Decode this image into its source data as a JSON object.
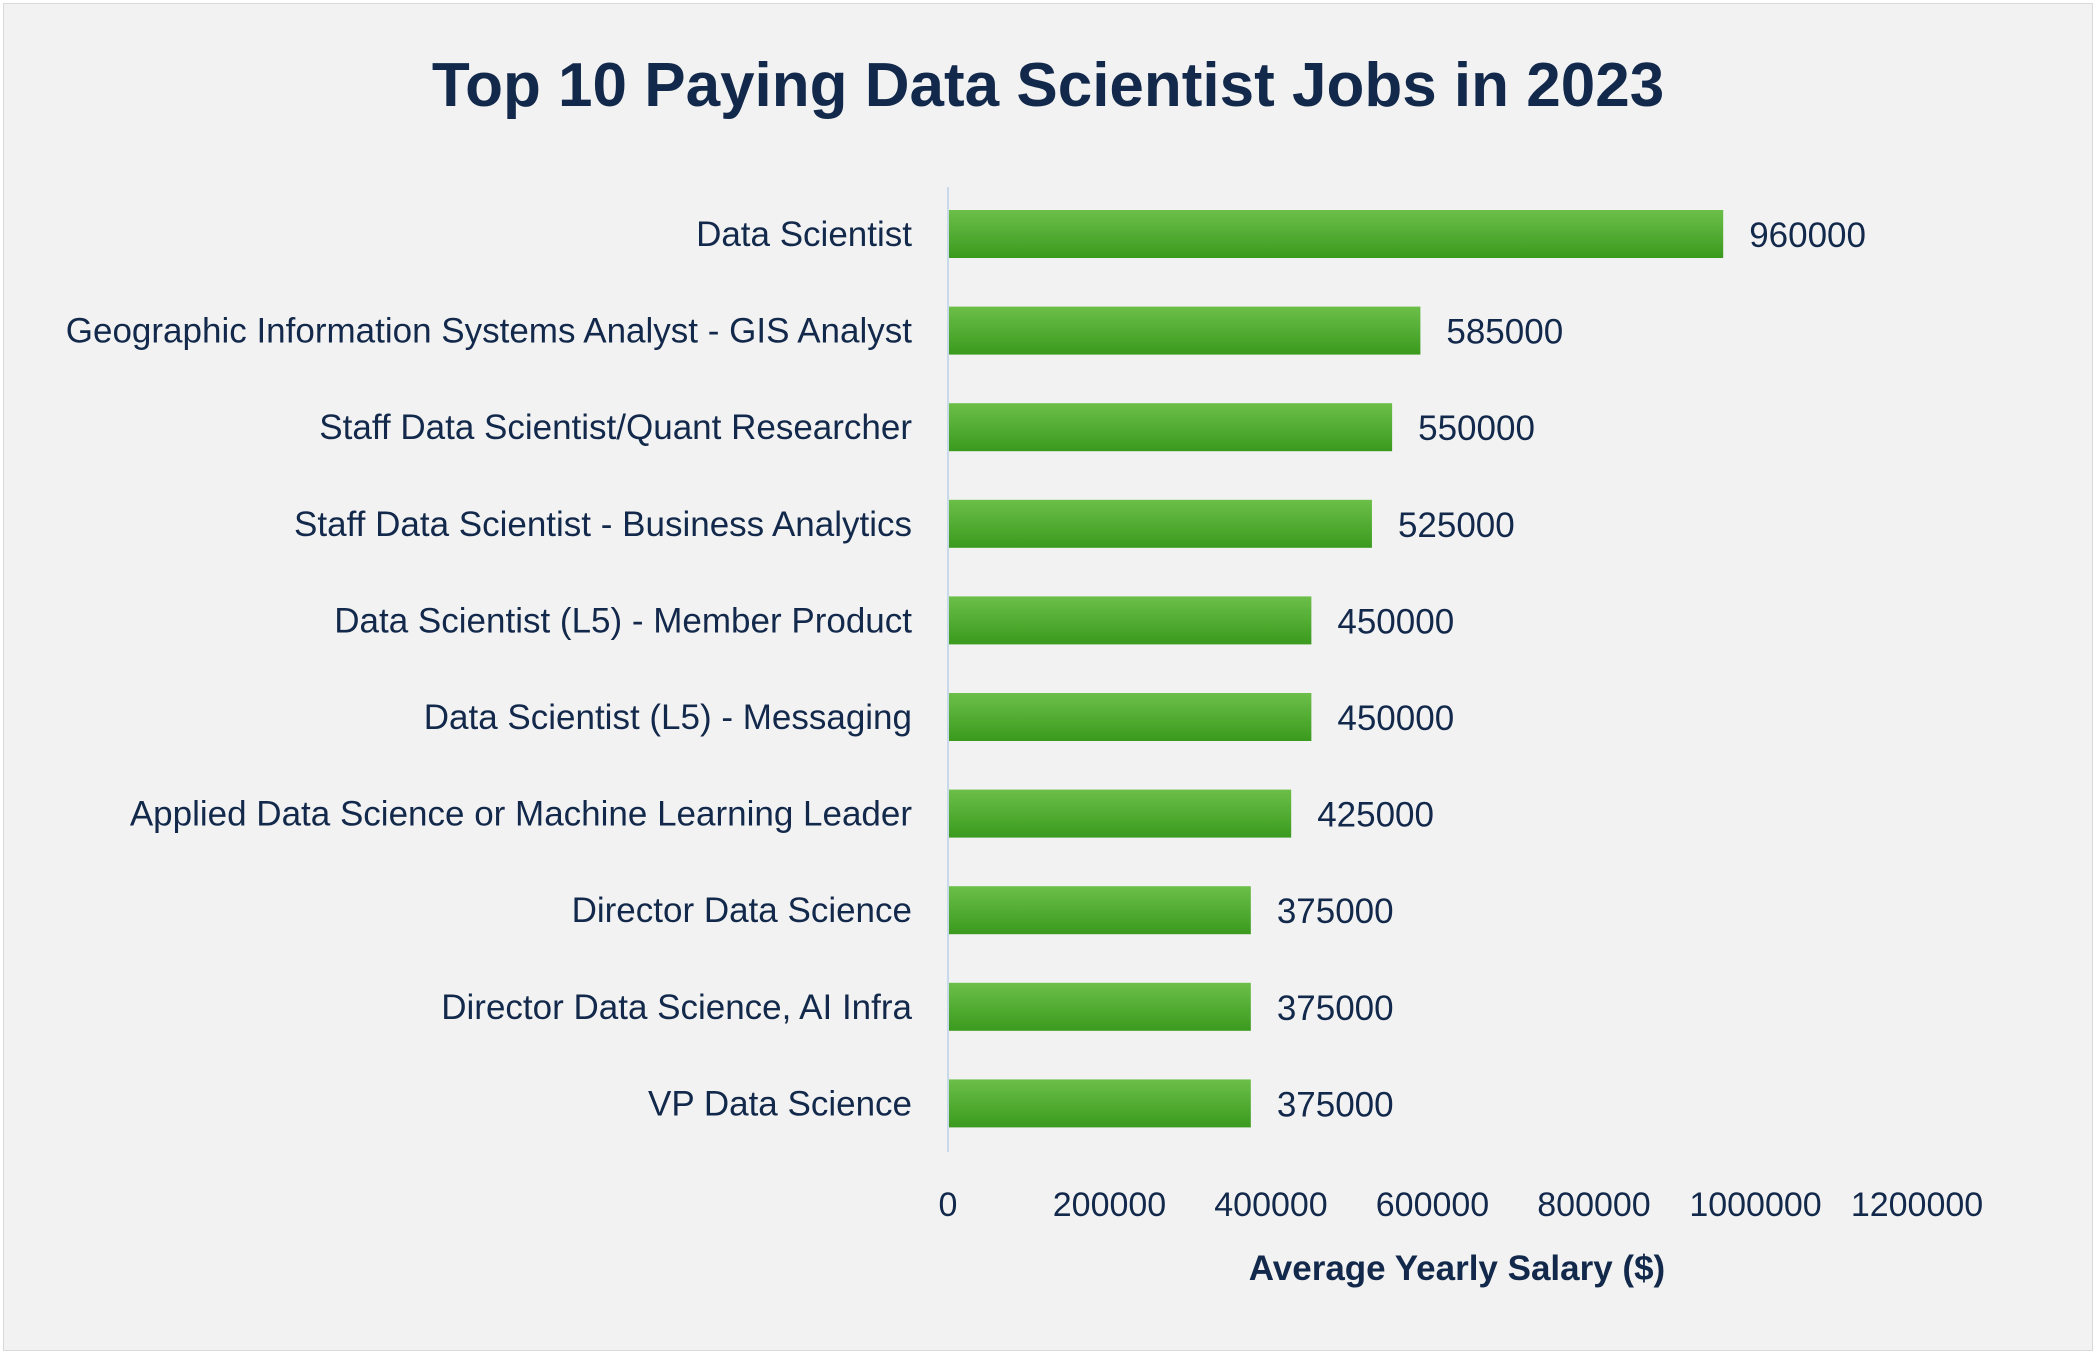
{
  "chart_data": {
    "type": "bar",
    "orientation": "horizontal",
    "title": "Top 10 Paying Data Scientist Jobs in 2023",
    "xlabel": "Average Yearly Salary ($)",
    "ylabel": "",
    "categories": [
      "Data Scientist",
      "Geographic Information Systems Analyst - GIS Analyst",
      "Staff Data Scientist/Quant Researcher",
      "Staff Data Scientist - Business Analytics",
      "Data Scientist (L5) - Member Product",
      "Data Scientist (L5) - Messaging",
      "Applied Data Science or Machine Learning Leader",
      "Director Data Science",
      "Director Data Science, AI Infra",
      "VP Data Science"
    ],
    "values": [
      960000,
      585000,
      550000,
      525000,
      450000,
      450000,
      425000,
      375000,
      375000,
      375000
    ],
    "data_labels": [
      "960000",
      "585000",
      "550000",
      "525000",
      "450000",
      "450000",
      "425000",
      "375000",
      "375000",
      "375000"
    ],
    "xlim": [
      0,
      1200000
    ],
    "x_ticks": [
      "0",
      "200000",
      "400000",
      "600000",
      "800000",
      "1000000",
      "1200000"
    ],
    "grid": false,
    "legend": "none",
    "colors": {
      "bar_light": "#6cbf49",
      "bar_dark": "#3a9a1e",
      "text": "#13294b",
      "background": "#f2f2f2",
      "axis_line": "#c9d9ec"
    }
  }
}
